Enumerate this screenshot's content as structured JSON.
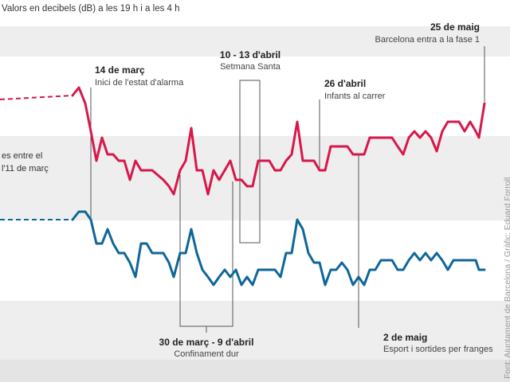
{
  "chart_data": {
    "type": "line",
    "subtitle": "Valors en decibels (dB) a les 19 h i a les 4 h",
    "side_label_lines": [
      "es entre el",
      "l'11 de març"
    ],
    "credit": "Font: Ajuntament de Barcelona / Gràfic: Eduard Forroll",
    "colors": {
      "red": "#d8174a",
      "blue": "#0f6699",
      "band": "#eeeeee",
      "text": "#333333",
      "rule": "#555555"
    },
    "series": [
      {
        "key": "evening",
        "color": "#d8174a",
        "baseline": [
          [
            0,
            125
          ],
          [
            91,
            120
          ]
        ],
        "values": [
          [
            91,
            120
          ],
          [
            99,
            110
          ],
          [
            107,
            130
          ],
          [
            114,
            165
          ],
          [
            121,
            202
          ],
          [
            128,
            173
          ],
          [
            135,
            194
          ],
          [
            142,
            194
          ],
          [
            149,
            202
          ],
          [
            156,
            202
          ],
          [
            163,
            226
          ],
          [
            170,
            202
          ],
          [
            177,
            214
          ],
          [
            184,
            214
          ],
          [
            191,
            214
          ],
          [
            198,
            220
          ],
          [
            205,
            226
          ],
          [
            212,
            234
          ],
          [
            218,
            244
          ],
          [
            226,
            214
          ],
          [
            233,
            202
          ],
          [
            240,
            161
          ],
          [
            247,
            214
          ],
          [
            254,
            214
          ],
          [
            261,
            244
          ],
          [
            268,
            214
          ],
          [
            275,
            226
          ],
          [
            282,
            214
          ],
          [
            289,
            202
          ],
          [
            296,
            226
          ],
          [
            303,
            226
          ],
          [
            310,
            234
          ],
          [
            317,
            234
          ],
          [
            324,
            202
          ],
          [
            331,
            202
          ],
          [
            338,
            202
          ],
          [
            345,
            214
          ],
          [
            352,
            214
          ],
          [
            359,
            202
          ],
          [
            366,
            194
          ],
          [
            373,
            153
          ],
          [
            380,
            202
          ],
          [
            387,
            202
          ],
          [
            394,
            202
          ],
          [
            401,
            214
          ],
          [
            408,
            214
          ],
          [
            415,
            184
          ],
          [
            422,
            184
          ],
          [
            429,
            184
          ],
          [
            436,
            184
          ],
          [
            443,
            194
          ],
          [
            450,
            194
          ],
          [
            457,
            194
          ],
          [
            464,
            173
          ],
          [
            471,
            173
          ],
          [
            478,
            173
          ],
          [
            485,
            173
          ],
          [
            492,
            173
          ],
          [
            499,
            184
          ],
          [
            506,
            194
          ],
          [
            513,
            173
          ],
          [
            520,
            165
          ],
          [
            527,
            173
          ],
          [
            534,
            165
          ],
          [
            541,
            173
          ],
          [
            548,
            190
          ],
          [
            555,
            165
          ],
          [
            562,
            153
          ],
          [
            569,
            153
          ],
          [
            576,
            153
          ],
          [
            583,
            165
          ],
          [
            590,
            153
          ],
          [
            597,
            165
          ],
          [
            601,
            173
          ],
          [
            608,
            130
          ]
        ]
      },
      {
        "key": "night",
        "color": "#0f6699",
        "baseline": [
          [
            0,
            276
          ],
          [
            91,
            276
          ]
        ],
        "values": [
          [
            91,
            276
          ],
          [
            99,
            266
          ],
          [
            107,
            266
          ],
          [
            114,
            276
          ],
          [
            121,
            306
          ],
          [
            128,
            306
          ],
          [
            135,
            288
          ],
          [
            142,
            306
          ],
          [
            149,
            318
          ],
          [
            156,
            318
          ],
          [
            163,
            330
          ],
          [
            170,
            348
          ],
          [
            177,
            306
          ],
          [
            184,
            306
          ],
          [
            191,
            318
          ],
          [
            198,
            318
          ],
          [
            205,
            318
          ],
          [
            212,
            330
          ],
          [
            218,
            348
          ],
          [
            226,
            318
          ],
          [
            233,
            318
          ],
          [
            240,
            288
          ],
          [
            247,
            318
          ],
          [
            254,
            339
          ],
          [
            261,
            348
          ],
          [
            268,
            358
          ],
          [
            275,
            348
          ],
          [
            282,
            339
          ],
          [
            289,
            348
          ],
          [
            296,
            339
          ],
          [
            303,
            358
          ],
          [
            310,
            348
          ],
          [
            317,
            358
          ],
          [
            324,
            339
          ],
          [
            331,
            339
          ],
          [
            338,
            339
          ],
          [
            345,
            339
          ],
          [
            352,
            348
          ],
          [
            359,
            318
          ],
          [
            366,
            318
          ],
          [
            373,
            276
          ],
          [
            380,
            288
          ],
          [
            387,
            318
          ],
          [
            394,
            330
          ],
          [
            401,
            330
          ],
          [
            408,
            358
          ],
          [
            415,
            339
          ],
          [
            422,
            339
          ],
          [
            429,
            330
          ],
          [
            436,
            339
          ],
          [
            443,
            358
          ],
          [
            450,
            348
          ],
          [
            457,
            358
          ],
          [
            464,
            339
          ],
          [
            471,
            339
          ],
          [
            478,
            327
          ],
          [
            485,
            327
          ],
          [
            492,
            327
          ],
          [
            499,
            339
          ],
          [
            506,
            339
          ],
          [
            513,
            327
          ],
          [
            520,
            318
          ],
          [
            527,
            327
          ],
          [
            534,
            318
          ],
          [
            541,
            327
          ],
          [
            548,
            318
          ],
          [
            555,
            327
          ],
          [
            562,
            339
          ],
          [
            569,
            327
          ],
          [
            576,
            327
          ],
          [
            583,
            327
          ],
          [
            590,
            327
          ],
          [
            597,
            327
          ],
          [
            601,
            339
          ],
          [
            608,
            339
          ]
        ]
      }
    ],
    "annotations": [
      {
        "date": "14 de març",
        "desc": "Inici de l'estat d'alarma"
      },
      {
        "date": "10 - 13 d'abril",
        "desc": "Setmana Santa"
      },
      {
        "date": "26 d'abril",
        "desc": "Infants al carrer"
      },
      {
        "date": "25 de maig",
        "desc": "Barcelona entra a la fase 1"
      },
      {
        "date": "30 de març - 9 d'abril",
        "desc": "Confinament dur"
      },
      {
        "date": "2 de maig",
        "desc": "Esport i sortides per franges"
      }
    ]
  }
}
